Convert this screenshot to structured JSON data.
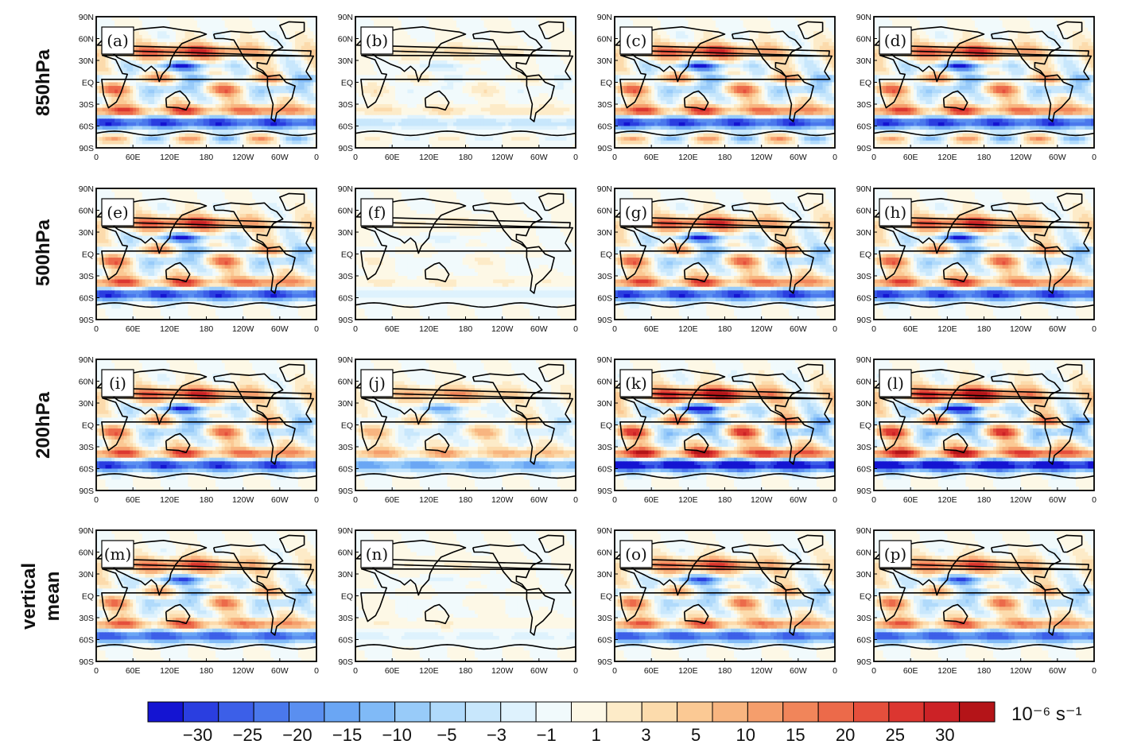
{
  "chart_data": {
    "type": "heatmap",
    "row_labels": [
      [
        "850hPa"
      ],
      [
        "500hPa"
      ],
      [
        "200hPa"
      ],
      [
        "vertical",
        "mean"
      ]
    ],
    "panels": [
      "(a)",
      "(b)",
      "(c)",
      "(d)",
      "(e)",
      "(f)",
      "(g)",
      "(h)",
      "(i)",
      "(j)",
      "(k)",
      "(l)",
      "(m)",
      "(n)",
      "(o)",
      "(p)"
    ],
    "panel_amplitude": [
      [
        1.0,
        0.25,
        1.0,
        1.0
      ],
      [
        1.0,
        0.15,
        1.0,
        1.0
      ],
      [
        1.0,
        0.6,
        1.25,
        1.25
      ],
      [
        0.9,
        0.12,
        0.9,
        0.9
      ]
    ],
    "y_ticks": [
      "90N",
      "60N",
      "30N",
      "EQ",
      "30S",
      "60S",
      "90S"
    ],
    "x_ticks": [
      "0",
      "60E",
      "120E",
      "180",
      "120W",
      "60W",
      "0"
    ],
    "colorbar": {
      "colors": [
        "#1414d2",
        "#2a3ee0",
        "#3c5fe8",
        "#4a78ec",
        "#5a8ff0",
        "#6aa6f4",
        "#80baf7",
        "#98cbf9",
        "#b0dafb",
        "#c8e7fc",
        "#def2fd",
        "#f1fafc",
        "#fdf8e6",
        "#fdebc8",
        "#fcdbac",
        "#fbc994",
        "#f8b580",
        "#f59e6c",
        "#f1855a",
        "#ec6a4a",
        "#e54f3c",
        "#dc3630",
        "#cc2226",
        "#b41418"
      ],
      "labels": [
        "−30",
        "−25",
        "−20",
        "−15",
        "−10",
        "−5",
        "−3",
        "−1",
        "1",
        "3",
        "5",
        "10",
        "15",
        "20",
        "25",
        "30"
      ],
      "unit": "10⁻⁶ s⁻¹"
    }
  }
}
